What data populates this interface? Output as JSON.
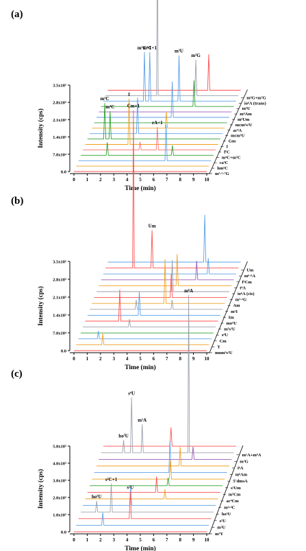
{
  "chart_data": [
    {
      "type": "line",
      "panel_label": "(a)",
      "xlabel": "Time (min)",
      "ylabel": "Intensity (cps)",
      "xlim": [
        0,
        10
      ],
      "xticks": [
        "0",
        "1",
        "2",
        "3",
        "4",
        "5",
        "6",
        "7",
        "8",
        "9",
        "10"
      ],
      "yticks": [
        "0.0",
        "7.0x10⁴",
        "1.4x10⁵",
        "2.1x10⁵",
        "2.8x10⁵",
        "3.5x10⁵"
      ],
      "series": [
        {
          "name": "m²·²·⁷G",
          "color": "#ff4f4f",
          "peaks": []
        },
        {
          "name": "hm⁵C",
          "color": "#f0a020",
          "peaks": []
        },
        {
          "name": "ca⁵C",
          "color": "#5aa0e6",
          "peaks": [
            {
              "t": 6.6,
              "h": 0.22
            }
          ]
        },
        {
          "name": "m⁴C+m⁵C",
          "color": "#2ca02c",
          "peaks": [
            {
              "t": 2.0,
              "h": 0.08
            },
            {
              "t": 6.9,
              "h": 0.06
            }
          ]
        },
        {
          "name": "f⁵C",
          "color": "#ff6f6f",
          "peaks": [
            {
              "t": 4.3,
              "h": 0.05
            },
            {
              "t": 5.6,
              "h": 0.14,
              "label": "rA+1"
            }
          ]
        },
        {
          "name": "I",
          "color": "#f0a020",
          "peaks": [
            {
              "t": 3.3,
              "h": 0.28,
              "label": "I"
            }
          ]
        },
        {
          "name": "Gm",
          "color": "#2ca02c",
          "peaks": [
            {
              "t": 1.3,
              "h": 0.22,
              "label": "m³C"
            },
            {
              "t": 1.7,
              "h": 0.17,
              "label": "m⁴C"
            }
          ]
        },
        {
          "name": "mcm⁵U",
          "color": "#5aa0e6",
          "peaks": [
            {
              "t": 3.6,
              "h": 0.22
            }
          ]
        },
        {
          "name": "ac⁴A",
          "color": "#f0a020",
          "peaks": [
            {
              "t": 5.6,
              "h": 0.1
            }
          ]
        },
        {
          "name": "mcm⁵s²U",
          "color": "#2ca02c",
          "peaks": []
        },
        {
          "name": "m⁵Um",
          "color": "#5aa0e6",
          "peaks": [
            {
              "t": 5.7,
              "h": 0.22
            }
          ]
        },
        {
          "name": "m⁶Am",
          "color": "#9b59b6",
          "peaks": []
        },
        {
          "name": "m⁵U",
          "color": "#2ca02c",
          "peaks": [
            {
              "t": 7.0,
              "h": 0.16
            }
          ]
        },
        {
          "name": "io⁶A (trans)",
          "color": "#5aa0e6",
          "peaks": [
            {
              "t": 3.1,
              "h": 0.3,
              "label": "m³C+1"
            },
            {
              "t": 3.5,
              "h": 0.3,
              "label": "m⁵C+1"
            },
            {
              "t": 5.7,
              "h": 0.28,
              "label": "m³U"
            }
          ]
        },
        {
          "name": "m²G+m⁷G",
          "color": "#9aa0aa",
          "peaks": [
            {
              "t": 3.9,
              "h": 1.0,
              "label": "m⁷G"
            },
            {
              "t": 6.8,
              "h": 0.22,
              "label": "m²G"
            }
          ]
        },
        {
          "name": "",
          "color": "#ff4f4f",
          "peaks": [
            {
              "t": 7.6,
              "h": 0.22
            }
          ]
        }
      ]
    },
    {
      "type": "line",
      "panel_label": "(b)",
      "xlabel": "Time (min)",
      "ylabel": "Intensity (cps)",
      "xlim": [
        0,
        10
      ],
      "xticks": [
        "0",
        "1",
        "2",
        "3",
        "4",
        "5",
        "6",
        "7",
        "8",
        "9",
        "10"
      ],
      "yticks": [
        "0.0",
        "7.0x10⁴",
        "1.4x10⁵",
        "2.1x10⁵",
        "2.8x10⁵",
        "3.5x10⁵"
      ],
      "series": [
        {
          "name": "mnm⁵s²U",
          "color": "#ff4f4f",
          "peaks": []
        },
        {
          "name": "Y",
          "color": "#f0a020",
          "peaks": [
            {
              "t": 2.0,
              "h": 0.07
            }
          ]
        },
        {
          "name": "Cm",
          "color": "#5aa0e6",
          "peaks": [
            {
              "t": 1.5,
              "h": 0.05
            }
          ]
        },
        {
          "name": "s⁴U",
          "color": "#2ca02c",
          "peaks": []
        },
        {
          "name": "m⁵s²U",
          "color": "#9aa0aa",
          "peaks": [
            {
              "t": 3.5,
              "h": 0.05
            }
          ]
        },
        {
          "name": "mo⁵U",
          "color": "#ff4f4f",
          "peaks": [
            {
              "t": 2.6,
              "h": 0.2
            }
          ]
        },
        {
          "name": "Im",
          "color": "#5aa0e6",
          "peaks": [
            {
              "t": 3.9,
              "h": 0.15
            }
          ]
        },
        {
          "name": "m¹I",
          "color": "#9aa0aa",
          "peaks": [
            {
              "t": 3.5,
              "h": 0.06
            },
            {
              "t": 6.2,
              "h": 0.06
            }
          ]
        },
        {
          "name": "Am",
          "color": "#f0a020",
          "peaks": [
            {
              "t": 5.5,
              "h": 0.28
            }
          ]
        },
        {
          "name": "m²·²G",
          "color": "#ff4f4f",
          "peaks": [
            {
              "t": 5.8,
              "h": 0.15
            }
          ]
        },
        {
          "name": "io⁶A (cis)",
          "color": "#9aa0aa",
          "peaks": [
            {
              "t": 5.7,
              "h": 0.2
            }
          ]
        },
        {
          "name": "t⁶A",
          "color": "#f0a020",
          "peaks": [
            {
              "t": 5.9,
              "h": 0.2
            }
          ]
        },
        {
          "name": "f⁵Cm",
          "color": "#9b59b6",
          "peaks": [
            {
              "t": 7.2,
              "h": 0.12
            }
          ]
        },
        {
          "name": "m⁶·⁶A",
          "color": "#5aa0e6",
          "peaks": [
            {
              "t": 7.9,
              "h": 0.1
            }
          ]
        },
        {
          "name": "Um",
          "color": "#ff4f4f",
          "peaks": [
            {
              "t": 2.1,
              "h": 1.0,
              "label": "Cm+1"
            },
            {
              "t": 3.5,
              "h": 0.24,
              "label": "Um"
            }
          ]
        },
        {
          "name": "",
          "color": "#5aa0e6",
          "peaks": [
            {
              "t": 7.3,
              "h": 0.3
            }
          ]
        }
      ]
    },
    {
      "type": "line",
      "panel_label": "(c)",
      "xlabel": "Time (min)",
      "ylabel": "Intensity (cps)",
      "xlim": [
        0,
        10
      ],
      "xticks": [
        "0",
        "1",
        "2",
        "3",
        "4",
        "5",
        "6",
        "7",
        "8",
        "9",
        "10"
      ],
      "yticks": [
        "0.0",
        "1.0x10⁵",
        "2.0x10⁵",
        "3.0x10⁵",
        "4.0x10⁵",
        "5.0x10⁵"
      ],
      "series": [
        {
          "name": "m³Y",
          "color": "#ff4f4f",
          "peaks": []
        },
        {
          "name": "m³U",
          "color": "#5aa0e6",
          "peaks": [
            {
              "t": 2.0,
              "h": 0.08
            }
          ]
        },
        {
          "name": "s²U",
          "color": "#ff4f4f",
          "peaks": [
            {
              "t": 3.9,
              "h": 0.17,
              "label": "s²U"
            }
          ]
        },
        {
          "name": "ho⁵U",
          "color": "#9aa0aa",
          "peaks": [
            {
              "t": 1.2,
              "h": 0.07,
              "label": "ho⁵U"
            },
            {
              "t": 2.3,
              "h": 0.18,
              "label": "s²C+1"
            }
          ]
        },
        {
          "name": "m⁴·⁴C",
          "color": "#5aa0e6",
          "peaks": [
            {
              "t": 3.6,
              "h": 0.12
            }
          ]
        },
        {
          "name": "ac⁴Cm",
          "color": "#f0a020",
          "peaks": [
            {
              "t": 6.0,
              "h": 0.06
            }
          ]
        },
        {
          "name": "m⁵Cm",
          "color": "#ff4f4f",
          "peaks": [
            {
              "t": 5.2,
              "h": 0.1
            }
          ]
        },
        {
          "name": "s²Um",
          "color": "#2ca02c",
          "peaks": [
            {
              "t": 5.9,
              "h": 0.05
            }
          ]
        },
        {
          "name": "5'dmsA",
          "color": "#f0a020",
          "peaks": [
            {
              "t": 5.9,
              "h": 0.12
            }
          ]
        },
        {
          "name": "m⁶Am",
          "color": "#5aa0e6",
          "peaks": [
            {
              "t": 5.7,
              "h": 0.2
            }
          ]
        },
        {
          "name": "i⁶A",
          "color": "#f0a020",
          "peaks": [
            {
              "t": 6.3,
              "h": 0.12
            }
          ]
        },
        {
          "name": "m²G",
          "color": "#9b59b6",
          "peaks": [
            {
              "t": 7.1,
              "h": 0.08
            }
          ]
        },
        {
          "name": "m¹A+m⁶A",
          "color": "#9aa0aa",
          "peaks": [
            {
              "t": 1.7,
              "h": 0.08,
              "label": "ho⁵U"
            },
            {
              "t": 2.3,
              "h": 0.35,
              "label": "s⁴U"
            },
            {
              "t": 3.1,
              "h": 0.18,
              "label": "m¹A"
            },
            {
              "t": 6.6,
              "h": 1.0,
              "label": "m⁶A"
            }
          ]
        },
        {
          "name": "",
          "color": "#ff4f4f",
          "peaks": [
            {
              "t": 5.1,
              "h": 0.12
            }
          ]
        }
      ]
    }
  ]
}
